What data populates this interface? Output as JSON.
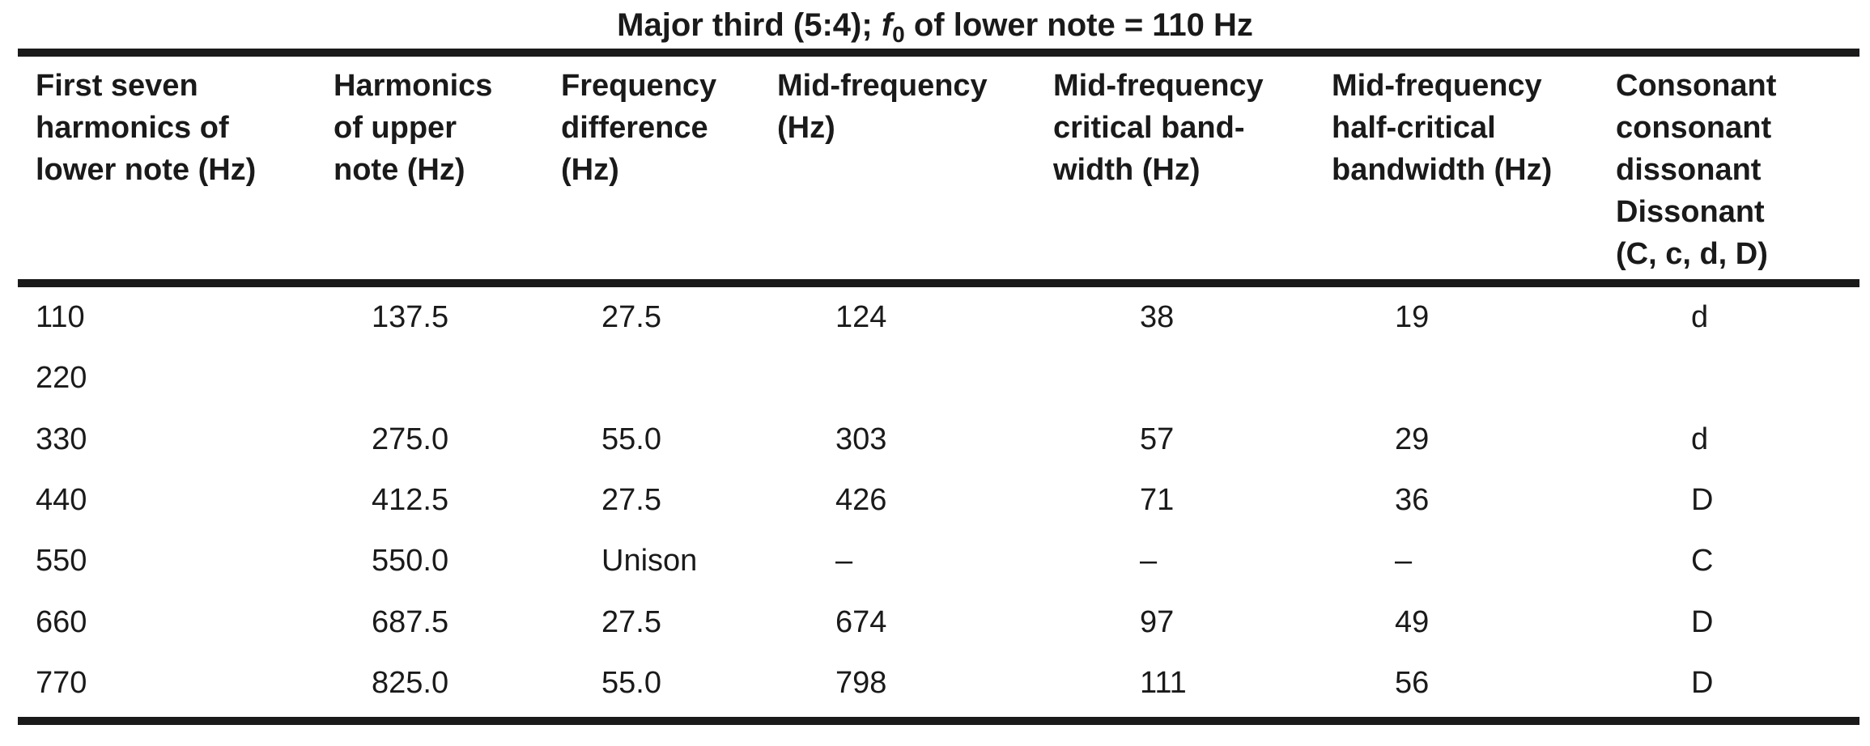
{
  "title": {
    "prefix": "Major third (5:4); ",
    "f_symbol": "f",
    "f_subscript": "0",
    "suffix": " of lower note = 110 Hz"
  },
  "table": {
    "headers": [
      "First seven\nharmonics of\nlower note (Hz)",
      "Harmonics\nof upper\nnote (Hz)",
      "Frequency\ndifference\n(Hz)",
      "Mid-frequency\n(Hz)",
      "Mid-frequency\ncritical band-\nwidth (Hz)",
      "Mid-frequency\nhalf-critical\nbandwidth (Hz)",
      "Consonant\nconsonant\ndissonant\nDissonant\n(C, c, d, D)"
    ],
    "rows": [
      [
        "110",
        "137.5",
        "27.5",
        "124",
        "38",
        "19",
        "d"
      ],
      [
        "220",
        "",
        "",
        "",
        "",
        "",
        ""
      ],
      [
        "330",
        "275.0",
        "55.0",
        "303",
        "57",
        "29",
        "d"
      ],
      [
        "440",
        "412.5",
        "27.5",
        "426",
        "71",
        "36",
        "D"
      ],
      [
        "550",
        "550.0",
        "Unison",
        "–",
        "–",
        "–",
        "C"
      ],
      [
        "660",
        "687.5",
        "27.5",
        "674",
        "97",
        "49",
        "D"
      ],
      [
        "770",
        "825.0",
        "55.0",
        "798",
        "111",
        "56",
        "D"
      ]
    ]
  }
}
